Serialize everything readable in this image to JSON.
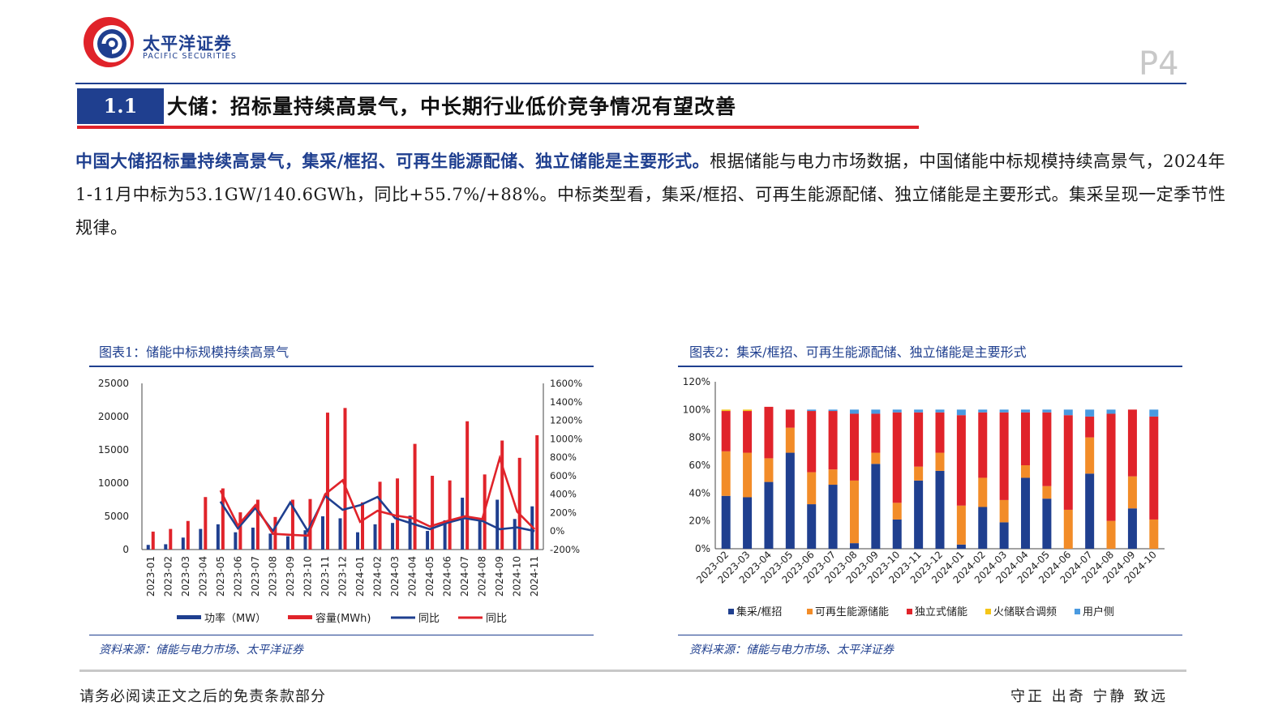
{
  "header": {
    "brand_cn": "太平洋证券",
    "brand_en": "PACIFIC SECURITIES",
    "page_number": "P4"
  },
  "section": {
    "number": "1.1",
    "title": "大储：招标量持续高景气，中长期行业低价竞争情况有望改善"
  },
  "paragraph": {
    "lead": "中国大储招标量持续高景气，集采/框招、可再生能源配储、独立储能是主要形式。",
    "body": "根据储能与电力市场数据，中国储能中标规模持续高景气，2024年1-11月中标为53.1GW/140.6GWh，同比+55.7%/+88%。中标类型看，集采/框招、可再生能源配储、独立储能是主要形式。集采呈现一定季节性规律。"
  },
  "figure1": {
    "caption": "图表1：储能中标规模持续高景气",
    "source": "资料来源：储能与电力市场、太平洋证券"
  },
  "figure2": {
    "caption": "图表2：集采/框招、可再生能源配储、独立储能是主要形式",
    "source": "资料来源：储能与电力市场、太平洋证券"
  },
  "footer": {
    "disclaimer": "请务必阅读正文之后的免责条款部分",
    "motto": "守正 出奇 宁静 致远"
  },
  "colors": {
    "navy": "#1f3f8f",
    "red": "#e0232a",
    "orange": "#f28c28",
    "yellow": "#f5c518",
    "lightblue": "#4a9ae0"
  },
  "chart_data": [
    {
      "type": "bar",
      "categories": [
        "2023-01",
        "2023-02",
        "2023-03",
        "2023-04",
        "2023-05",
        "2023-06",
        "2023-07",
        "2023-08",
        "2023-09",
        "2023-10",
        "2023-11",
        "2023-12",
        "2024-01",
        "2024-02",
        "2024-03",
        "2024-04",
        "2024-05",
        "2024-06",
        "2024-07",
        "2024-08",
        "2024-09",
        "2024-10",
        "2024-11"
      ],
      "y_left": {
        "ticks": [
          "0",
          "5000",
          "10000",
          "15000",
          "20000",
          "25000"
        ],
        "ylim": [
          0,
          25000
        ]
      },
      "y_right": {
        "ticks": [
          "-200%",
          "0%",
          "200%",
          "400%",
          "600%",
          "800%",
          "1000%",
          "1200%",
          "1400%",
          "1600%"
        ],
        "ylim": [
          -200,
          1600
        ]
      },
      "series": [
        {
          "name": "功率（MW）",
          "kind": "bar",
          "axis": "left",
          "values": [
            700,
            800,
            1800,
            3100,
            3800,
            2600,
            3300,
            2400,
            2000,
            2900,
            5000,
            4700,
            2600,
            3800,
            4000,
            5100,
            2800,
            4400,
            7800,
            4400,
            7500,
            4600,
            6500
          ]
        },
        {
          "name": "容量(MWh)",
          "kind": "bar",
          "axis": "left",
          "values": [
            2700,
            3100,
            4300,
            7900,
            9200,
            5600,
            7500,
            4900,
            7500,
            7600,
            20600,
            21300,
            7100,
            10200,
            10700,
            15900,
            11100,
            10400,
            19300,
            11300,
            16400,
            13800,
            17200
          ]
        },
        {
          "name": "同比",
          "kind": "line",
          "axis": "right",
          "values": [
            null,
            null,
            null,
            null,
            320,
            30,
            250,
            0,
            310,
            0,
            380,
            230,
            280,
            370,
            140,
            80,
            20,
            90,
            140,
            110,
            20,
            40,
            0
          ]
        },
        {
          "name": "同比",
          "kind": "line",
          "axis": "right",
          "values": [
            null,
            null,
            null,
            null,
            440,
            60,
            280,
            -30,
            -40,
            -50,
            400,
            550,
            100,
            220,
            170,
            140,
            50,
            110,
            160,
            130,
            790,
            210,
            20
          ]
        }
      ],
      "legend_position": "bottom"
    },
    {
      "type": "bar",
      "stacked": true,
      "categories": [
        "2023-02",
        "2023-03",
        "2023-04",
        "2023-05",
        "2023-06",
        "2023-07",
        "2023-08",
        "2023-09",
        "2023-10",
        "2023-11",
        "2023-12",
        "2024-01",
        "2024-02",
        "2024-03",
        "2024-04",
        "2024-05",
        "2024-06",
        "2024-07",
        "2024-08",
        "2024-09",
        "2024-10"
      ],
      "y": {
        "ticks": [
          "0%",
          "20%",
          "40%",
          "60%",
          "80%",
          "100%",
          "120%"
        ],
        "ylim": [
          0,
          120
        ]
      },
      "series": [
        {
          "name": "集采/框招",
          "values": [
            38,
            37,
            48,
            69,
            32,
            46,
            4,
            61,
            21,
            49,
            56,
            3,
            30,
            19,
            51,
            36,
            0,
            54,
            0,
            29,
            0
          ]
        },
        {
          "name": "可再生能源储能",
          "values": [
            32,
            32,
            17,
            18,
            23,
            11,
            45,
            8,
            12,
            10,
            13,
            28,
            21,
            16,
            9,
            9,
            28,
            26,
            20,
            23,
            21
          ]
        },
        {
          "name": "独立式储能",
          "values": [
            29,
            30,
            37,
            13,
            44,
            42,
            48,
            28,
            65,
            39,
            29,
            65,
            47,
            63,
            38,
            53,
            68,
            15,
            77,
            48,
            74
          ]
        },
        {
          "name": "火储联合调频",
          "values": [
            1,
            1,
            0,
            0,
            0,
            0,
            0,
            0,
            0,
            0,
            0,
            0,
            0,
            0,
            0,
            0,
            0,
            0,
            0,
            0,
            0
          ]
        },
        {
          "name": "用户侧",
          "values": [
            0,
            0,
            0,
            0,
            1,
            1,
            3,
            3,
            2,
            2,
            2,
            4,
            2,
            2,
            2,
            2,
            4,
            5,
            3,
            0,
            5
          ]
        }
      ],
      "legend_position": "bottom"
    }
  ]
}
